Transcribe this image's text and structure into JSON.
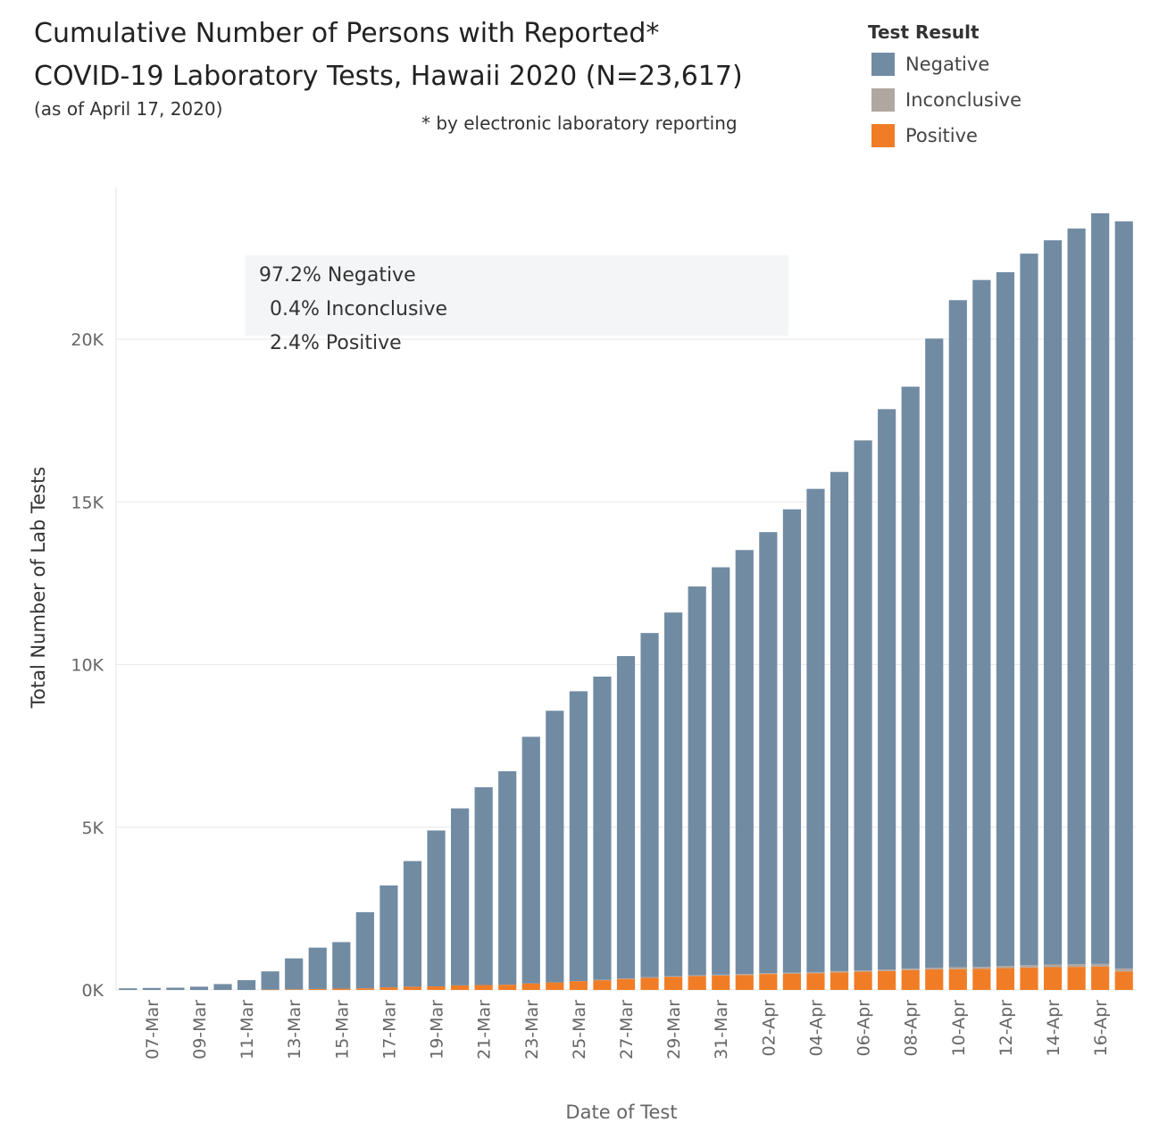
{
  "title_line1": "Cumulative Number of Persons with Reported*",
  "title_line2": "COVID-19 Laboratory Tests, Hawaii 2020 (N=23,617)",
  "as_of": "(as of April 17, 2020)",
  "footnote": "* by electronic laboratory reporting",
  "legend": {
    "title": "Test Result",
    "items": [
      {
        "label": "Negative",
        "color": "#718ba3"
      },
      {
        "label": "Inconclusive",
        "color": "#b0a7a1"
      },
      {
        "label": "Positive",
        "color": "#f07d26"
      }
    ]
  },
  "annotation": {
    "line1": "97.2% Negative",
    "line2": "0.4% Inconclusive",
    "line3": "2.4% Positive"
  },
  "chart_data": {
    "type": "bar",
    "stacked": true,
    "xlabel": "Date of Test",
    "ylabel": "Total Number of Lab Tests",
    "ylim": [
      0,
      24000
    ],
    "yticks": [
      0,
      5000,
      10000,
      15000,
      20000
    ],
    "ytick_labels": [
      "0K",
      "5K",
      "10K",
      "15K",
      "20K"
    ],
    "grid": true,
    "legend_position": "top-right",
    "categories": [
      "06-Mar",
      "07-Mar",
      "08-Mar",
      "09-Mar",
      "10-Mar",
      "11-Mar",
      "12-Mar",
      "13-Mar",
      "14-Mar",
      "15-Mar",
      "16-Mar",
      "17-Mar",
      "18-Mar",
      "19-Mar",
      "20-Mar",
      "21-Mar",
      "22-Mar",
      "23-Mar",
      "24-Mar",
      "25-Mar",
      "26-Mar",
      "27-Mar",
      "28-Mar",
      "29-Mar",
      "30-Mar",
      "31-Mar",
      "01-Apr",
      "02-Apr",
      "03-Apr",
      "04-Apr",
      "05-Apr",
      "06-Apr",
      "07-Apr",
      "08-Apr",
      "09-Apr",
      "10-Apr",
      "11-Apr",
      "12-Apr",
      "13-Apr",
      "14-Apr",
      "15-Apr",
      "16-Apr",
      "17-Apr"
    ],
    "xtick_labels": [
      "07-Mar",
      "09-Mar",
      "11-Mar",
      "13-Mar",
      "15-Mar",
      "17-Mar",
      "19-Mar",
      "21-Mar",
      "23-Mar",
      "25-Mar",
      "27-Mar",
      "29-Mar",
      "31-Mar",
      "02-Apr",
      "04-Apr",
      "06-Apr",
      "08-Apr",
      "10-Apr",
      "12-Apr",
      "14-Apr",
      "16-Apr"
    ],
    "series": [
      {
        "name": "Positive",
        "color": "#f07d26",
        "values": [
          0,
          0,
          0,
          0,
          0,
          0,
          10,
          20,
          30,
          40,
          50,
          80,
          100,
          110,
          140,
          150,
          160,
          200,
          230,
          270,
          300,
          340,
          370,
          400,
          430,
          440,
          460,
          490,
          500,
          510,
          540,
          560,
          580,
          610,
          630,
          640,
          650,
          670,
          690,
          700,
          710,
          720,
          570
        ]
      },
      {
        "name": "Inconclusive",
        "color": "#b0a7a1",
        "values": [
          0,
          0,
          0,
          0,
          0,
          0,
          0,
          0,
          0,
          0,
          0,
          0,
          0,
          0,
          0,
          0,
          0,
          0,
          0,
          0,
          10,
          10,
          20,
          20,
          20,
          30,
          30,
          30,
          30,
          40,
          40,
          40,
          50,
          50,
          50,
          60,
          60,
          70,
          70,
          80,
          80,
          80,
          90
        ]
      },
      {
        "name": "Negative",
        "color": "#718ba3",
        "values": [
          50,
          60,
          70,
          100,
          180,
          300,
          560,
          950,
          1270,
          1430,
          2340,
          3130,
          3860,
          4790,
          5440,
          6080,
          6560,
          7580,
          8350,
          8910,
          9320,
          9910,
          10580,
          11180,
          11950,
          12520,
          13030,
          13550,
          14240,
          14850,
          15340,
          16290,
          17220,
          17880,
          19340,
          20500,
          21110,
          21320,
          21870,
          22260,
          22610,
          23070,
          22960
        ]
      }
    ]
  }
}
